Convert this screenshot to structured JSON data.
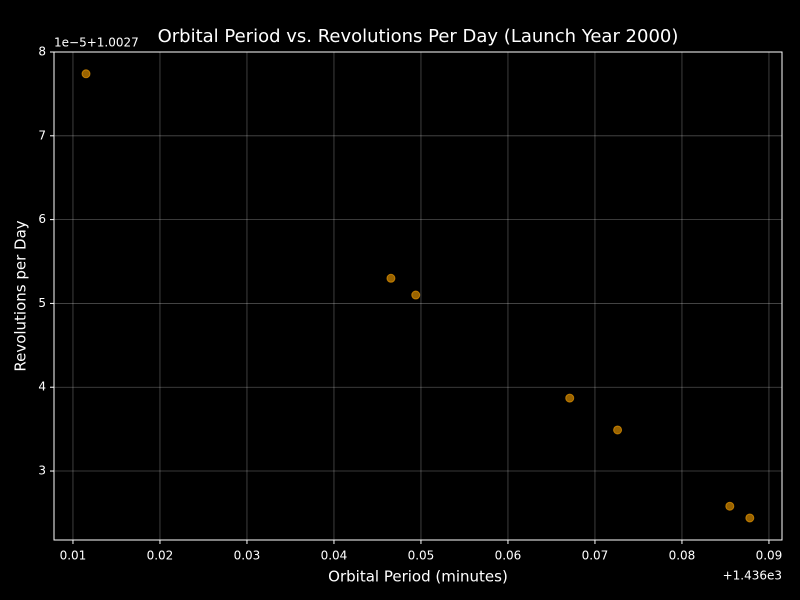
{
  "chart_data": {
    "type": "scatter",
    "title": "Orbital Period vs. Revolutions Per Day (Launch Year 2000)",
    "x_label": "Orbital Period (minutes)",
    "y_label": "Revolutions per Day",
    "x_offset_label": "+1.436e3",
    "y_offset_label": "1e−5+1.0027",
    "xlim": [
      1436.00782,
      1436.0915
    ],
    "ylim": [
      1.00272177,
      1.00278
    ],
    "xticks": [
      {
        "value": 1436.01,
        "label": "0.01"
      },
      {
        "value": 1436.02,
        "label": "0.02"
      },
      {
        "value": 1436.03,
        "label": "0.03"
      },
      {
        "value": 1436.04,
        "label": "0.04"
      },
      {
        "value": 1436.05,
        "label": "0.05"
      },
      {
        "value": 1436.06,
        "label": "0.06"
      },
      {
        "value": 1436.07,
        "label": "0.07"
      },
      {
        "value": 1436.08,
        "label": "0.08"
      },
      {
        "value": 1436.09,
        "label": "0.09"
      }
    ],
    "yticks": [
      {
        "value": 1.00273,
        "label": "3"
      },
      {
        "value": 1.00274,
        "label": "4"
      },
      {
        "value": 1.00275,
        "label": "5"
      },
      {
        "value": 1.00276,
        "label": "6"
      },
      {
        "value": 1.00277,
        "label": "7"
      },
      {
        "value": 1.00278,
        "label": "8"
      }
    ],
    "grid": true,
    "color": "#ffa500",
    "alpha": 0.6,
    "x": [
      1436.0115,
      1436.04655,
      1436.0494,
      1436.0671,
      1436.0726,
      1436.0855,
      1436.0878
    ],
    "values": [
      1.0027774,
      1.002753,
      1.002751,
      1.0027387,
      1.0027349,
      1.0027258,
      1.0027244
    ]
  }
}
